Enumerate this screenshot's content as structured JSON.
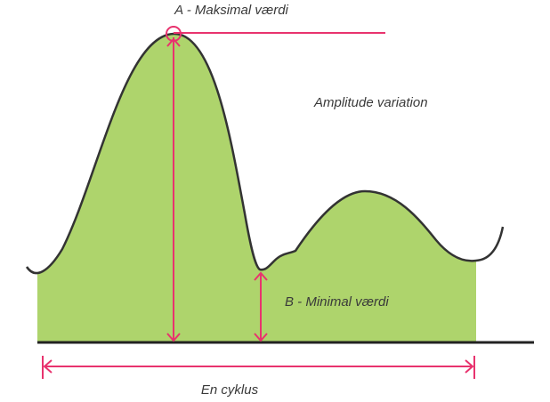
{
  "labels": {
    "max": "A - Maksimal værdi",
    "amplitude": "Amplitude variation",
    "min": "B - Minimal værdi",
    "cycle": "En cyklus"
  }
}
